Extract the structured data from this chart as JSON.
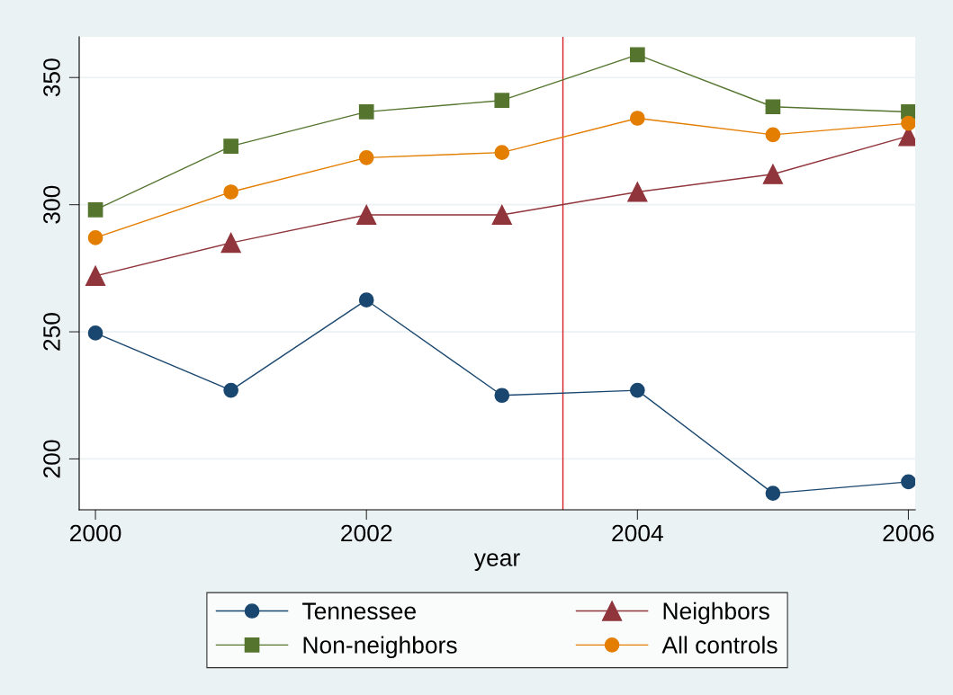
{
  "chart_data": {
    "type": "line",
    "xlabel": "year",
    "x": [
      2000,
      2001,
      2002,
      2003,
      2004,
      2005,
      2006
    ],
    "series": [
      {
        "name": "Tennessee",
        "color": "#1a476f",
        "marker": "circle",
        "values": [
          249.5,
          227,
          262.5,
          225,
          227,
          186.5,
          191
        ]
      },
      {
        "name": "Neighbors",
        "color": "#90353b",
        "marker": "triangle",
        "values": [
          272,
          285,
          296,
          296,
          305,
          312,
          327
        ]
      },
      {
        "name": "Non-neighbors",
        "color": "#55752f",
        "marker": "square",
        "values": [
          298,
          323,
          336.5,
          341,
          359,
          338.5,
          336.5
        ]
      },
      {
        "name": "All controls",
        "color": "#e37e00",
        "marker": "circle",
        "values": [
          287,
          305,
          318.5,
          320.5,
          334,
          327.5,
          332
        ]
      }
    ],
    "xlim": [
      1999.88,
      2006.05
    ],
    "xticks": [
      2000,
      2002,
      2004,
      2006
    ],
    "ylim": [
      180,
      366
    ],
    "yticks": [
      200,
      250,
      300,
      350
    ],
    "ref_lines": [
      {
        "axis": "x",
        "value": 2003.45,
        "color": "#d42027"
      }
    ],
    "grid": "y",
    "legend": "bottom",
    "line_style": "solid"
  }
}
